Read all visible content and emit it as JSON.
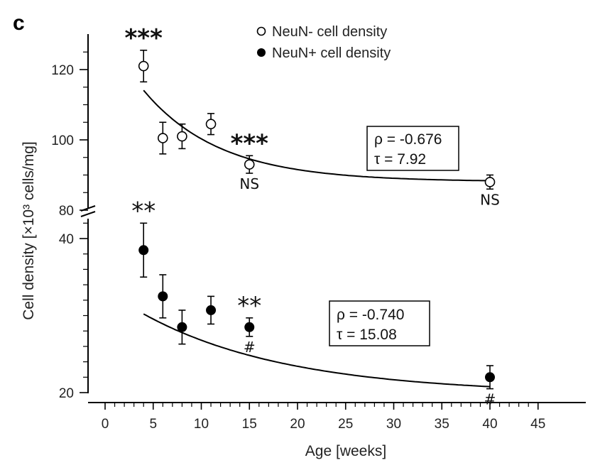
{
  "panel_label": "c",
  "legend": [
    {
      "label": "NeuN- cell density",
      "marker": "open-circle"
    },
    {
      "label": "NeuN+ cell density",
      "marker": "filled-circle"
    }
  ],
  "chart_data": {
    "type": "scatter",
    "xlabel": "Age [weeks]",
    "ylabel": "Cell density [×10³ cells/mg]",
    "xlim": [
      0,
      45
    ],
    "x_ticks": [
      0,
      5,
      10,
      15,
      20,
      25,
      30,
      35,
      40,
      45
    ],
    "broken_y_axis": true,
    "upper_panel": {
      "ylim": [
        80,
        130
      ],
      "y_ticks": [
        80,
        100,
        120
      ]
    },
    "lower_panel": {
      "ylim": [
        20,
        42
      ],
      "y_ticks": [
        20,
        40
      ]
    },
    "series": [
      {
        "name": "NeuN- cell density",
        "panel": "upper",
        "marker": "open",
        "x": [
          4,
          6,
          8,
          11,
          15,
          40
        ],
        "y": [
          121,
          100.5,
          101,
          104.5,
          93,
          88
        ],
        "err": [
          4.5,
          4.5,
          3.5,
          3,
          2.5,
          2
        ],
        "fit": {
          "a": 88.1,
          "b": 43.1,
          "tau": 7.92,
          "x_start": 4,
          "x_end": 40
        },
        "stats": {
          "rho": "ρ = -0.676",
          "tau": "τ = 7.92"
        }
      },
      {
        "name": "NeuN+ cell density",
        "panel": "lower",
        "marker": "filled",
        "x": [
          4,
          6,
          8,
          11,
          15,
          40
        ],
        "y": [
          38.5,
          32.5,
          28.5,
          30.7,
          28.5,
          22
        ],
        "err": [
          3.5,
          2.8,
          2.2,
          1.8,
          1.2,
          1.5
        ],
        "fit": {
          "a": 19.82,
          "b": 13.55,
          "tau": 15.08,
          "x_start": 4,
          "x_end": 40
        },
        "stats": {
          "rho": "ρ = -0.740",
          "tau": "τ = 15.08"
        }
      }
    ],
    "annotations": [
      {
        "text": "***",
        "x": 4,
        "panel": "upper",
        "pos": "above"
      },
      {
        "text": "***",
        "x": 15,
        "panel": "upper",
        "pos": "above"
      },
      {
        "text": "NS",
        "x": 15,
        "panel": "upper",
        "pos": "below"
      },
      {
        "text": "NS",
        "x": 40,
        "panel": "upper",
        "pos": "below"
      },
      {
        "text": "**",
        "x": 4,
        "panel": "lower",
        "pos": "above"
      },
      {
        "text": "**",
        "x": 15,
        "panel": "lower",
        "pos": "above"
      },
      {
        "text": "#",
        "x": 15,
        "panel": "lower",
        "pos": "below"
      },
      {
        "text": "#",
        "x": 40,
        "panel": "lower",
        "pos": "below"
      }
    ]
  }
}
